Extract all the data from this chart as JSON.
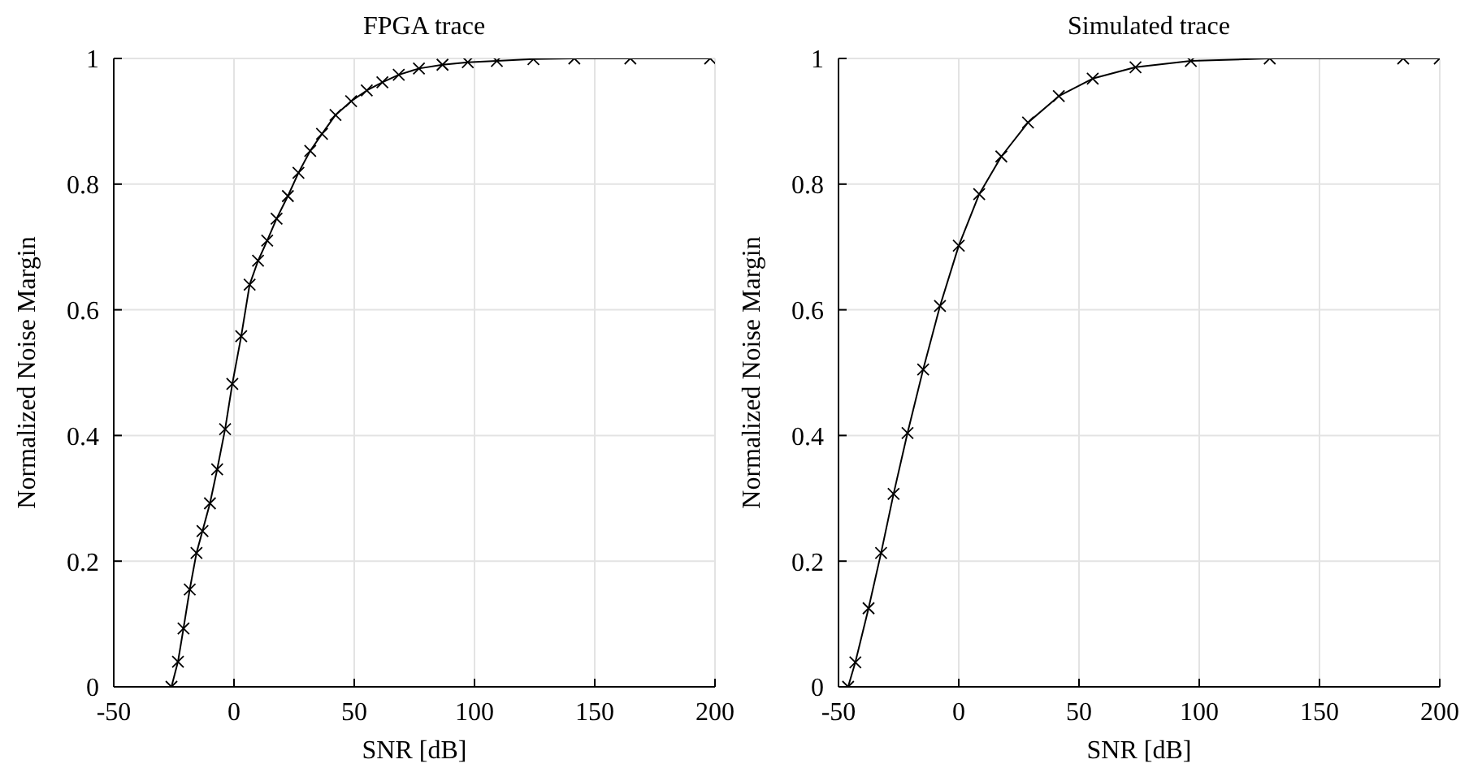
{
  "chart_data": [
    {
      "type": "line",
      "title": "FPGA trace",
      "xlabel": "SNR [dB]",
      "ylabel": "Normalized Noise Margin",
      "xlim": [
        -50,
        200
      ],
      "ylim": [
        0,
        1
      ],
      "xticks": [
        -50,
        0,
        50,
        100,
        150,
        200
      ],
      "yticks": [
        0,
        0.2,
        0.4,
        0.6,
        0.8,
        1
      ],
      "grid": true,
      "marker": "cross",
      "line_style": "solid",
      "series": [
        {
          "color": "#000000",
          "x": [
            -26,
            -23.3,
            -21,
            -18.4,
            -15.6,
            -13.1,
            -10,
            -7,
            -3.7,
            -0.7,
            3,
            6.5,
            10,
            13.8,
            17.7,
            22.4,
            26.8,
            31.7,
            36.6,
            42.2,
            48.7,
            55.2,
            61.7,
            68.5,
            76.9,
            86.7,
            97.2,
            109.3,
            124.5,
            141.5,
            164.8,
            198
          ],
          "values": [
            0,
            0.04,
            0.093,
            0.155,
            0.213,
            0.248,
            0.292,
            0.346,
            0.41,
            0.482,
            0.558,
            0.64,
            0.678,
            0.71,
            0.745,
            0.781,
            0.818,
            0.853,
            0.88,
            0.91,
            0.932,
            0.949,
            0.962,
            0.974,
            0.984,
            0.99,
            0.994,
            0.996,
            0.999,
            1,
            1,
            1
          ]
        }
      ]
    },
    {
      "type": "line",
      "title": "Simulated trace",
      "xlabel": "SNR [dB]",
      "ylabel": "Normalized Noise Margin",
      "xlim": [
        -50,
        200
      ],
      "ylim": [
        0,
        1
      ],
      "xticks": [
        -50,
        0,
        50,
        100,
        150,
        200
      ],
      "yticks": [
        0,
        0.2,
        0.4,
        0.6,
        0.8,
        1
      ],
      "grid": true,
      "marker": "cross",
      "line_style": "solid",
      "series": [
        {
          "color": "#000000",
          "x": [
            -46,
            -43,
            -37.5,
            -32.3,
            -27.1,
            -21.3,
            -14.8,
            -7.8,
            0,
            8.5,
            17.7,
            28.8,
            41.6,
            55.7,
            73.5,
            96.5,
            129.3,
            184.8,
            200
          ],
          "values": [
            0,
            0.039,
            0.125,
            0.213,
            0.307,
            0.404,
            0.505,
            0.606,
            0.702,
            0.784,
            0.844,
            0.898,
            0.94,
            0.968,
            0.986,
            0.996,
            1,
            1,
            1
          ]
        }
      ]
    }
  ]
}
